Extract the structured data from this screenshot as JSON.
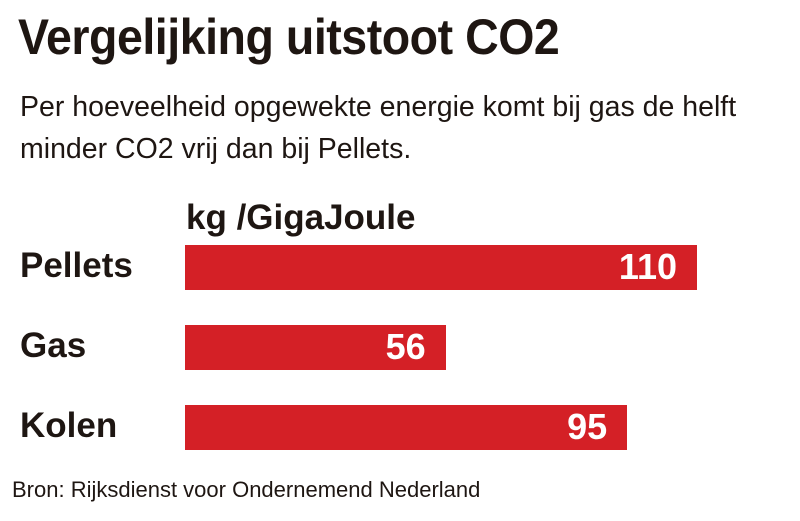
{
  "title": "Vergelijking uitstoot CO2",
  "subtitle": "Per hoeveelheid opgewekte energie komt bij gas de helft minder CO2 vrij dan bij Pellets.",
  "source": "Bron: Rijksdienst voor Ondernemend Nederland",
  "chart_data": {
    "type": "bar",
    "orientation": "horizontal",
    "title": "Vergelijking uitstoot CO2",
    "unit_label": "kg /GigaJoule",
    "categories": [
      "Pellets",
      "Gas",
      "Kolen"
    ],
    "values": [
      110,
      56,
      95
    ],
    "value_labels": [
      "110",
      "56",
      "95"
    ],
    "bar_color": "#d42026",
    "grid": false
  }
}
